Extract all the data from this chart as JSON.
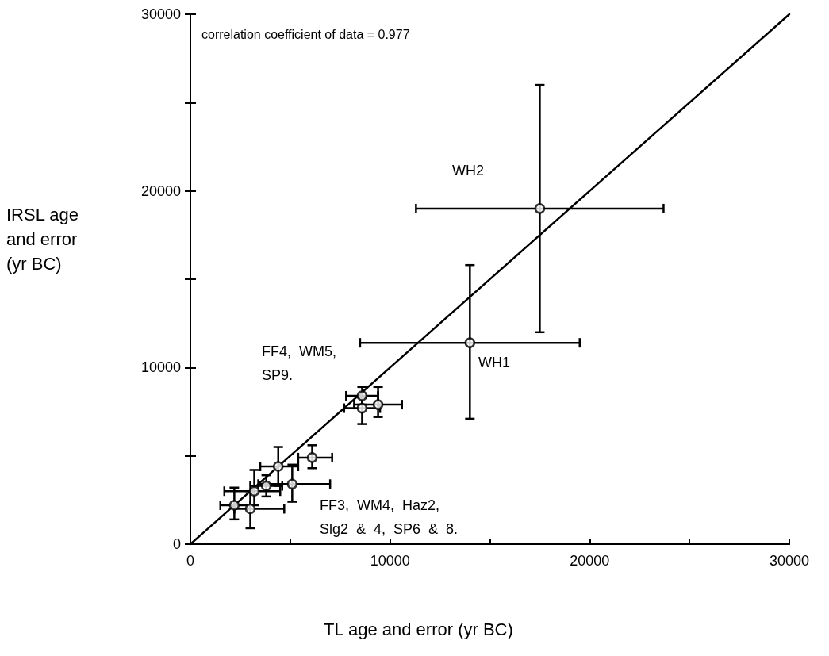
{
  "chart_data": {
    "type": "scatter",
    "xlabel": "TL age and error (yr BC)",
    "ylabel": "IRSL age\nand error\n(yr BC)",
    "xlim": [
      0,
      30000
    ],
    "ylim": [
      0,
      30000
    ],
    "xticks": [
      0,
      {
        "value": 5000,
        "label": null
      },
      10000,
      {
        "value": 15000,
        "label": null
      },
      20000,
      {
        "value": 25000,
        "label": null
      },
      30000
    ],
    "yticks": [
      0,
      {
        "value": 5000,
        "label": null
      },
      10000,
      {
        "value": 15000,
        "label": null
      },
      20000,
      {
        "value": 25000,
        "label": null
      },
      30000
    ],
    "grid": false,
    "series": [
      {
        "color": "#000000",
        "marker": "circle",
        "x": [
          17500,
          14000,
          8600,
          8600,
          9400,
          6100,
          4400,
          5100,
          3800,
          3200,
          3000,
          2200
        ],
        "values": [
          19000,
          11400,
          8400,
          7700,
          7900,
          4900,
          4400,
          3400,
          3300,
          3000,
          2000,
          2200
        ],
        "xerrors": [
          [
            11300,
            23700
          ],
          [
            8500,
            19500
          ],
          [
            7800,
            9400
          ],
          [
            7700,
            9500
          ],
          [
            8200,
            10600
          ],
          [
            5400,
            7100
          ],
          [
            3500,
            5400
          ],
          [
            3400,
            7000
          ],
          [
            3000,
            4600
          ],
          [
            1700,
            4500
          ],
          [
            2200,
            4700
          ],
          [
            1500,
            3000
          ]
        ],
        "errors": [
          [
            12000,
            26000
          ],
          [
            7100,
            15800
          ],
          [
            7900,
            8900
          ],
          [
            6800,
            8300
          ],
          [
            7200,
            8900
          ],
          [
            4300,
            5600
          ],
          [
            3300,
            5500
          ],
          [
            2400,
            4500
          ],
          [
            2700,
            3900
          ],
          [
            2200,
            4200
          ],
          [
            900,
            3000
          ],
          [
            1400,
            3200
          ]
        ]
      },
      {
        "type": "line",
        "color": "#000000",
        "marker": "none",
        "line_style": "solid",
        "x": [
          0,
          30000
        ],
        "values": [
          0,
          30000
        ]
      }
    ],
    "annotations": [
      "correlation coefficient of data = 0.977",
      "WH2",
      "WH1",
      "FF4,  WM5,\nSP9.",
      "FF3,  WM4,  Haz2,\nSlg2  &  4,  SP6  &  8."
    ]
  }
}
